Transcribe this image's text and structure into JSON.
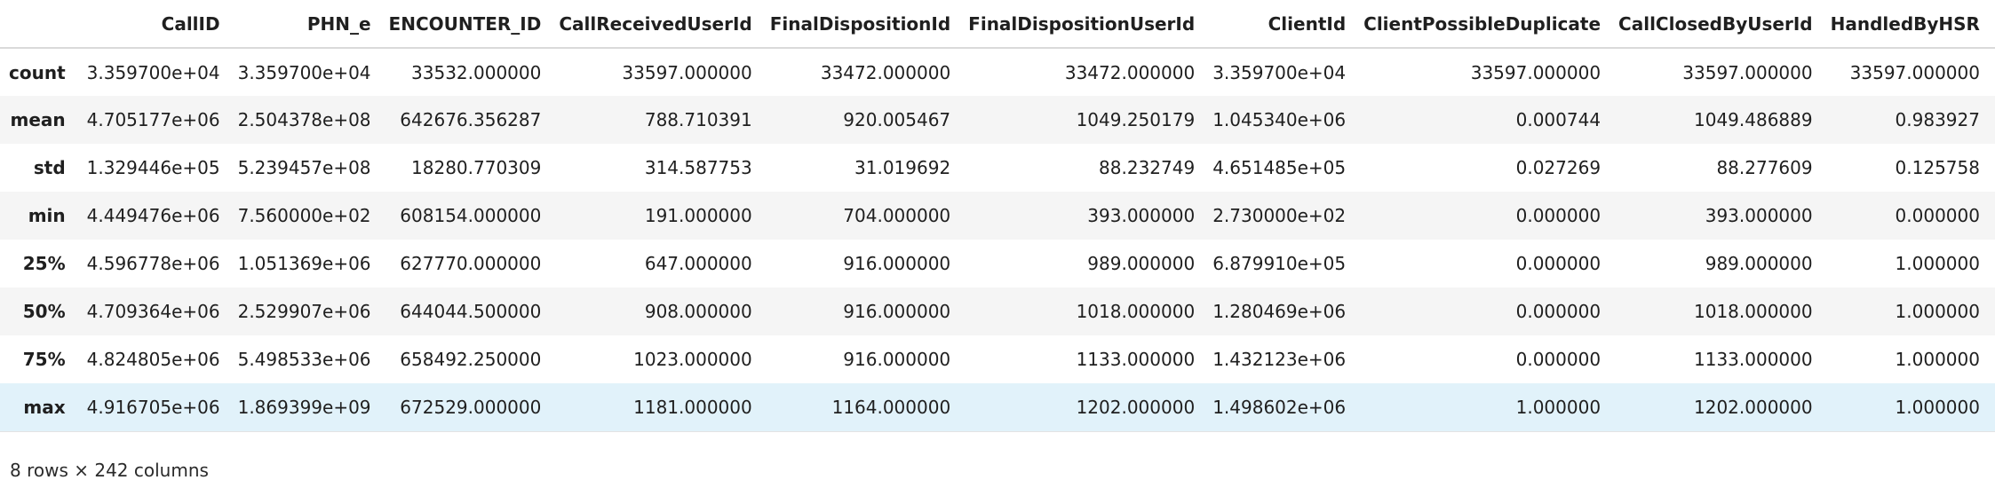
{
  "table": {
    "columns": [
      "CallID",
      "PHN_e",
      "ENCOUNTER_ID",
      "CallReceivedUserId",
      "FinalDispositionId",
      "FinalDispositionUserId",
      "ClientId",
      "ClientPossibleDuplicate",
      "CallClosedByUserId",
      "HandledByHSR"
    ],
    "rows": [
      {
        "label": "count",
        "cells": [
          "3.359700e+04",
          "3.359700e+04",
          "33532.000000",
          "33597.000000",
          "33472.000000",
          "33472.000000",
          "3.359700e+04",
          "33597.000000",
          "33597.000000",
          "33597.000000"
        ]
      },
      {
        "label": "mean",
        "cells": [
          "4.705177e+06",
          "2.504378e+08",
          "642676.356287",
          "788.710391",
          "920.005467",
          "1049.250179",
          "1.045340e+06",
          "0.000744",
          "1049.486889",
          "0.983927"
        ]
      },
      {
        "label": "std",
        "cells": [
          "1.329446e+05",
          "5.239457e+08",
          "18280.770309",
          "314.587753",
          "31.019692",
          "88.232749",
          "4.651485e+05",
          "0.027269",
          "88.277609",
          "0.125758"
        ]
      },
      {
        "label": "min",
        "cells": [
          "4.449476e+06",
          "7.560000e+02",
          "608154.000000",
          "191.000000",
          "704.000000",
          "393.000000",
          "2.730000e+02",
          "0.000000",
          "393.000000",
          "0.000000"
        ]
      },
      {
        "label": "25%",
        "cells": [
          "4.596778e+06",
          "1.051369e+06",
          "627770.000000",
          "647.000000",
          "916.000000",
          "989.000000",
          "6.879910e+05",
          "0.000000",
          "989.000000",
          "1.000000"
        ]
      },
      {
        "label": "50%",
        "cells": [
          "4.709364e+06",
          "2.529907e+06",
          "644044.500000",
          "908.000000",
          "916.000000",
          "1018.000000",
          "1.280469e+06",
          "0.000000",
          "1018.000000",
          "1.000000"
        ]
      },
      {
        "label": "75%",
        "cells": [
          "4.824805e+06",
          "5.498533e+06",
          "658492.250000",
          "1023.000000",
          "916.000000",
          "1133.000000",
          "1.432123e+06",
          "0.000000",
          "1133.000000",
          "1.000000"
        ]
      },
      {
        "label": "max",
        "cells": [
          "4.916705e+06",
          "1.869399e+09",
          "672529.000000",
          "1181.000000",
          "1164.000000",
          "1202.000000",
          "1.498602e+06",
          "1.000000",
          "1202.000000",
          "1.000000"
        ]
      }
    ]
  },
  "footer": {
    "summary": "8 rows × 242 columns"
  }
}
